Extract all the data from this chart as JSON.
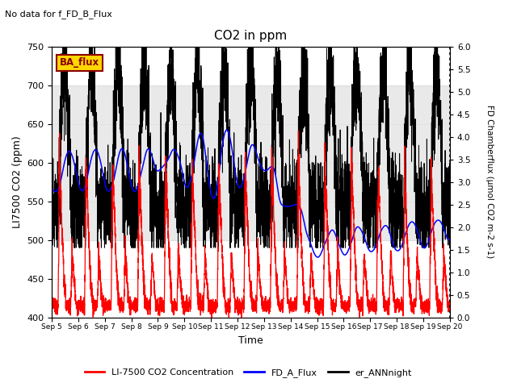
{
  "title": "CO2 in ppm",
  "top_left_text": "No data for f_FD_B_Flux",
  "xlabel": "Time",
  "ylabel_left": "LI7500 CO2 (ppm)",
  "ylabel_right": "FD Chamberflux (μmol CO2 m-2 s-1)",
  "ylim_left": [
    400,
    750
  ],
  "ylim_right": [
    0.0,
    6.0
  ],
  "yticks_left": [
    400,
    450,
    500,
    550,
    600,
    650,
    700,
    750
  ],
  "yticks_right": [
    0.0,
    0.5,
    1.0,
    1.5,
    2.0,
    2.5,
    3.0,
    3.5,
    4.0,
    4.5,
    5.0,
    5.5,
    6.0
  ],
  "xtick_labels": [
    "Sep 5",
    "Sep 6",
    "Sep 7",
    "Sep 8",
    "Sep 9",
    "Sep 10",
    "Sep 11",
    "Sep 12",
    "Sep 13",
    "Sep 14",
    "Sep 15",
    "Sep 16",
    "Sep 17",
    "Sep 18",
    "Sep 19",
    "Sep 20"
  ],
  "shaded_band_low": 500,
  "shaded_band_high": 700,
  "shaded_color": "#d0d0d0",
  "shaded_alpha": 0.45,
  "ba_flux_box_text": "BA_flux",
  "ba_flux_box_facecolor": "#FFD700",
  "ba_flux_box_edgecolor": "#8B0000",
  "legend_labels": [
    "LI-7500 CO2 Concentration",
    "FD_A_Flux",
    "er_ANNnight"
  ],
  "legend_colors": [
    "#FF0000",
    "#0000FF",
    "#000000"
  ],
  "line_lw_red": 0.9,
  "line_lw_blue": 1.1,
  "line_lw_black": 0.7,
  "days": 15,
  "n_points": 4320,
  "seed": 7
}
